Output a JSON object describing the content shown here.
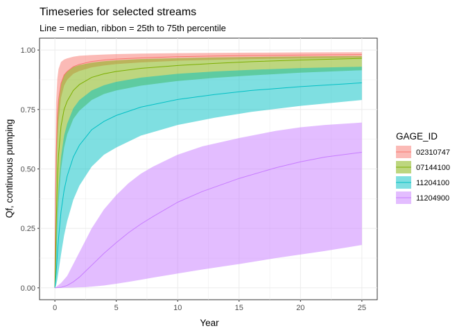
{
  "chart_data": {
    "type": "area",
    "title": "Timeseries for selected streams",
    "subtitle": "Line = median, ribbon = 25th to 75th percentile",
    "xlabel": "Year",
    "ylabel": "Qf, continuous pumping",
    "xlim": [
      -1.25,
      26.25
    ],
    "ylim": [
      -0.05,
      1.05
    ],
    "x_ticks": [
      0,
      5,
      10,
      15,
      20,
      25
    ],
    "y_ticks": [
      0.0,
      0.25,
      0.5,
      0.75,
      1.0
    ],
    "y_tick_labels": [
      "0.00",
      "0.25",
      "0.50",
      "0.75",
      "1.00"
    ],
    "grid": true,
    "legend": {
      "title": "GAGE_ID",
      "placement": "right"
    },
    "series": [
      {
        "name": "02310747",
        "color": "#F8766D",
        "x": [
          0,
          0.05,
          0.1,
          0.2,
          0.3,
          0.5,
          0.75,
          1,
          1.5,
          2,
          3,
          4,
          5,
          7,
          10,
          13,
          16,
          20,
          25
        ],
        "median": [
          0,
          0.37,
          0.55,
          0.72,
          0.79,
          0.86,
          0.895,
          0.91,
          0.93,
          0.94,
          0.952,
          0.958,
          0.962,
          0.967,
          0.972,
          0.975,
          0.977,
          0.979,
          0.981
        ],
        "q25": [
          0,
          0.25,
          0.42,
          0.6,
          0.7,
          0.8,
          0.85,
          0.875,
          0.9,
          0.912,
          0.927,
          0.935,
          0.941,
          0.948,
          0.955,
          0.959,
          0.962,
          0.965,
          0.968
        ],
        "q75": [
          0,
          0.58,
          0.78,
          0.88,
          0.92,
          0.95,
          0.96,
          0.965,
          0.972,
          0.976,
          0.979,
          0.981,
          0.983,
          0.985,
          0.987,
          0.988,
          0.989,
          0.99,
          0.991
        ]
      },
      {
        "name": "07144100",
        "color": "#7CAE00",
        "x": [
          0,
          0.05,
          0.1,
          0.2,
          0.3,
          0.5,
          0.75,
          1,
          1.5,
          2,
          3,
          4,
          5,
          7,
          10,
          13,
          16,
          20,
          25
        ],
        "median": [
          0,
          0.1,
          0.25,
          0.45,
          0.56,
          0.68,
          0.75,
          0.785,
          0.83,
          0.855,
          0.885,
          0.9,
          0.91,
          0.923,
          0.935,
          0.944,
          0.951,
          0.958,
          0.965
        ],
        "q25": [
          0,
          0.03,
          0.1,
          0.25,
          0.36,
          0.5,
          0.59,
          0.645,
          0.71,
          0.745,
          0.79,
          0.815,
          0.83,
          0.85,
          0.87,
          0.883,
          0.893,
          0.905,
          0.915
        ],
        "q75": [
          0,
          0.3,
          0.5,
          0.7,
          0.78,
          0.86,
          0.895,
          0.91,
          0.928,
          0.937,
          0.947,
          0.953,
          0.957,
          0.962,
          0.966,
          0.969,
          0.971,
          0.973,
          0.975
        ]
      },
      {
        "name": "11204100",
        "color": "#00BFC4",
        "x": [
          0,
          0.1,
          0.2,
          0.3,
          0.5,
          0.75,
          1,
          1.5,
          2,
          3,
          4,
          5,
          7,
          10,
          13,
          16,
          20,
          25
        ],
        "median": [
          0,
          0.06,
          0.14,
          0.21,
          0.32,
          0.41,
          0.47,
          0.55,
          0.6,
          0.665,
          0.7,
          0.725,
          0.76,
          0.792,
          0.813,
          0.83,
          0.846,
          0.862
        ],
        "q25": [
          0,
          0.01,
          0.035,
          0.07,
          0.14,
          0.22,
          0.28,
          0.37,
          0.43,
          0.51,
          0.56,
          0.59,
          0.64,
          0.685,
          0.715,
          0.74,
          0.765,
          0.79
        ],
        "q75": [
          0,
          0.18,
          0.33,
          0.43,
          0.55,
          0.64,
          0.69,
          0.755,
          0.79,
          0.83,
          0.852,
          0.866,
          0.884,
          0.9,
          0.91,
          0.917,
          0.924,
          0.93
        ]
      },
      {
        "name": "11204900",
        "color": "#C77CFF",
        "x": [
          0,
          0.5,
          1,
          1.5,
          2,
          2.5,
          3,
          4,
          5,
          6,
          7,
          8,
          10,
          12,
          15,
          18,
          20,
          22,
          25
        ],
        "median": [
          0,
          0.002,
          0.01,
          0.025,
          0.045,
          0.07,
          0.095,
          0.145,
          0.19,
          0.232,
          0.268,
          0.3,
          0.36,
          0.405,
          0.46,
          0.505,
          0.53,
          0.55,
          0.57
        ],
        "q25": [
          0,
          0.0,
          0.0005,
          0.001,
          0.002,
          0.003,
          0.005,
          0.01,
          0.017,
          0.025,
          0.034,
          0.043,
          0.06,
          0.077,
          0.1,
          0.125,
          0.14,
          0.155,
          0.18
        ],
        "q75": [
          0,
          0.02,
          0.05,
          0.1,
          0.15,
          0.2,
          0.25,
          0.33,
          0.39,
          0.44,
          0.48,
          0.51,
          0.56,
          0.595,
          0.63,
          0.66,
          0.675,
          0.685,
          0.695
        ]
      }
    ]
  }
}
